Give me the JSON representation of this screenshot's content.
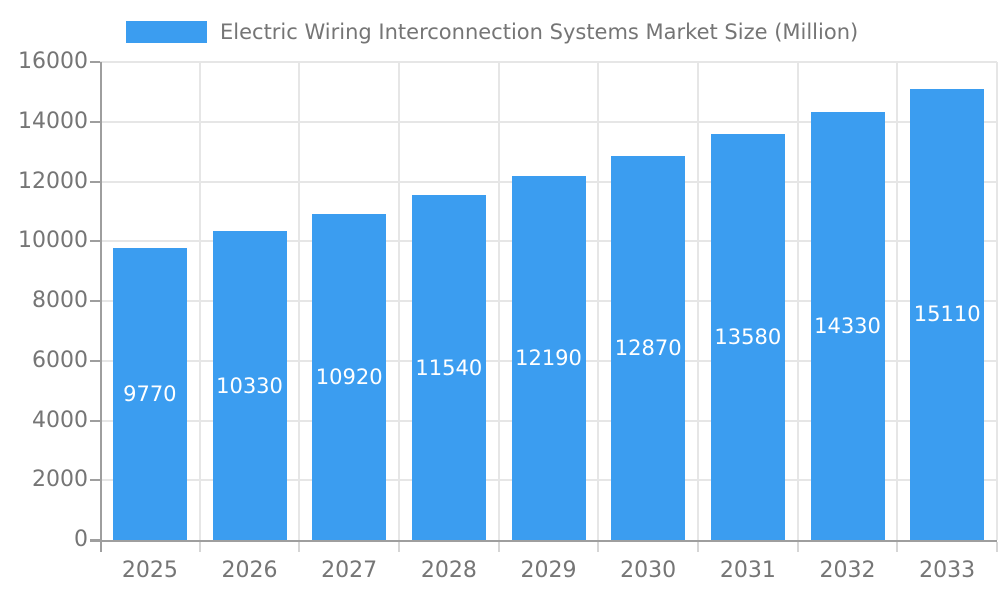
{
  "chart_data": {
    "type": "bar",
    "series_name": "Electric Wiring Interconnection Systems Market Size (Million)",
    "categories": [
      "2025",
      "2026",
      "2027",
      "2028",
      "2029",
      "2030",
      "2031",
      "2032",
      "2033"
    ],
    "values": [
      9770,
      10330,
      10920,
      11540,
      12190,
      12870,
      13580,
      14330,
      15110
    ],
    "xlabel": "",
    "ylabel": "",
    "ylim": [
      0,
      16000
    ],
    "ytick_step": 2000,
    "ytick_labels": [
      "0",
      "2000",
      "4000",
      "6000",
      "8000",
      "10000",
      "12000",
      "14000",
      "16000"
    ],
    "grid": true,
    "legend_position": "top",
    "value_label_position": "inside-center",
    "style": {
      "bar_color": "#3b9df0",
      "value_label_color": "#ffffff",
      "grid_color": "#e6e6e6",
      "axis_color": "#9e9e9e",
      "tick_label_color": "#757575",
      "legend_text_color": "#757575",
      "background_color": "#ffffff"
    }
  }
}
